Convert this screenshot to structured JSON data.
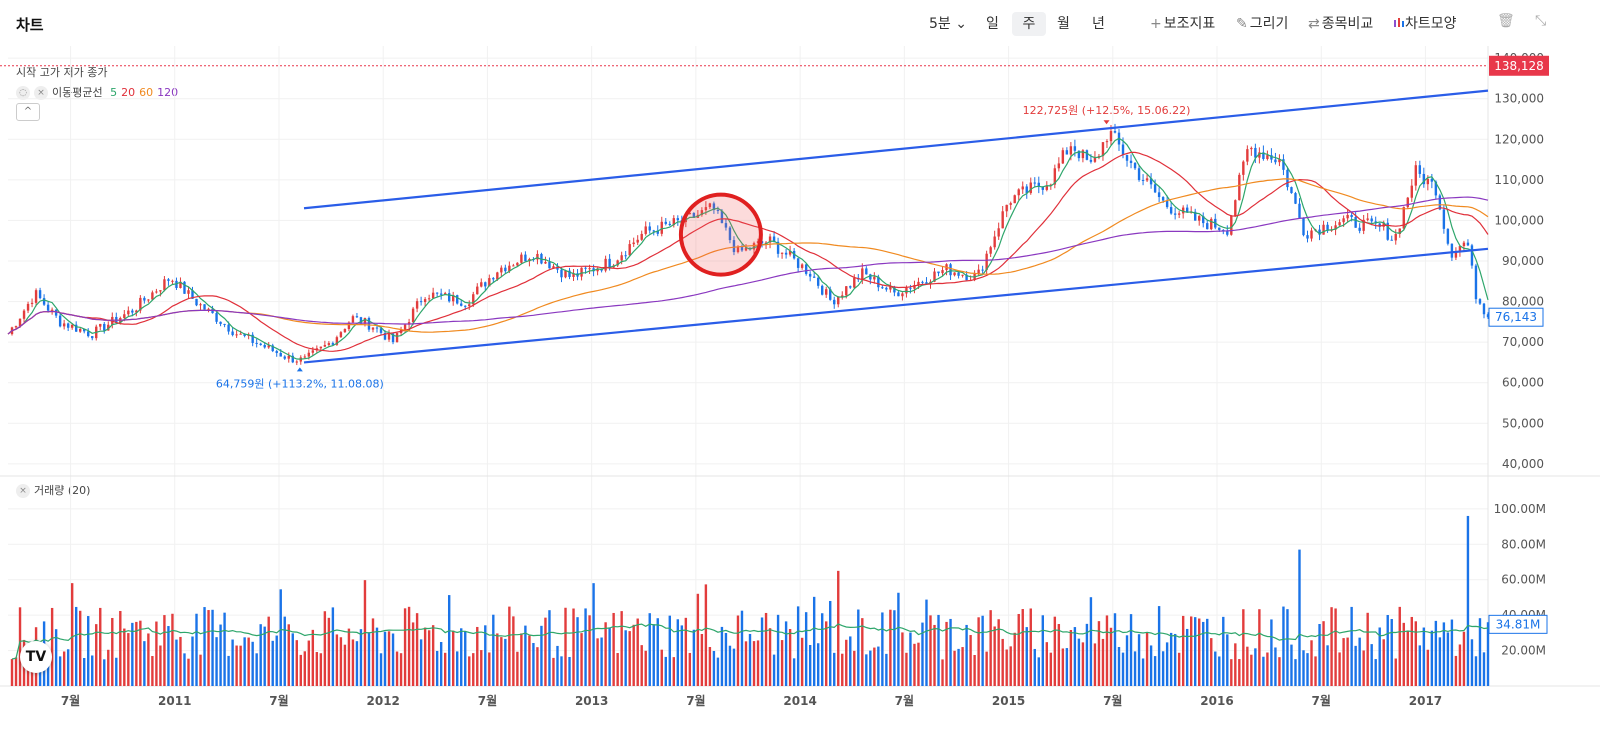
{
  "header": {
    "title": "차트",
    "interval": "5분",
    "periods": [
      "일",
      "주",
      "월",
      "년"
    ],
    "active_period": "주",
    "tools": [
      {
        "icon": "plus",
        "label": "보조지표"
      },
      {
        "icon": "✎",
        "label": "그리기"
      },
      {
        "icon": "⇄",
        "label": "종목비교"
      },
      {
        "icon": "candles",
        "label": "차트모양"
      }
    ]
  },
  "legend": {
    "ohlc_label": "시작 고가 저가 종가",
    "ma_name": "이동평균선",
    "ma_periods": [
      {
        "period": "5",
        "color": "#2ea66b"
      },
      {
        "period": "20",
        "color": "#e0303a"
      },
      {
        "period": "60",
        "color": "#f08a20"
      },
      {
        "period": "120",
        "color": "#8a38c0"
      }
    ],
    "volume_label": "거래량 (20)"
  },
  "price_axis": {
    "ticks": [
      "140,000",
      "130,000",
      "120,000",
      "110,000",
      "100,000",
      "90,000",
      "80,000",
      "70,000",
      "60,000",
      "50,000",
      "40,000"
    ],
    "high_line_label": "138,128",
    "last_price_label": "76,143"
  },
  "volume_axis": {
    "ticks": [
      "100.00M",
      "80.00M",
      "60.00M",
      "40.00M",
      "20.00M"
    ],
    "last_volume_label": "34.81M"
  },
  "time_axis": {
    "labels": [
      "7월",
      "2011",
      "7월",
      "2012",
      "7월",
      "2013",
      "7월",
      "2014",
      "7월",
      "2015",
      "7월",
      "2016",
      "7월",
      "2017"
    ]
  },
  "annotations": {
    "high": "122,725원 (+12.5%, 15.06.22)",
    "low": "64,759원 (+113.2%, 11.08.08)"
  },
  "colors": {
    "up": "#e23c3c",
    "down": "#1a73e8",
    "channel": "#2a5de8",
    "circle": "#e02020",
    "high_label_bg": "#e8374a"
  },
  "chart_data": {
    "type": "candlestick",
    "title": "차트",
    "x_range": [
      "2010-03",
      "2017-03"
    ],
    "ylim": [
      37000,
      143000
    ],
    "volume_ylim": [
      0,
      105000000
    ],
    "price_path": [
      [
        "2010.20",
        72000
      ],
      [
        "2010.33",
        82000
      ],
      [
        "2010.45",
        75000
      ],
      [
        "2010.60",
        72000
      ],
      [
        "2010.80",
        78000
      ],
      [
        "2010.98",
        86000
      ],
      [
        "2011.10",
        80000
      ],
      [
        "2011.30",
        72000
      ],
      [
        "2011.55",
        66000
      ],
      [
        "2011.62",
        65500
      ],
      [
        "2011.75",
        70000
      ],
      [
        "2011.85",
        76000
      ],
      [
        "2011.95",
        74000
      ],
      [
        "2012.05",
        70000
      ],
      [
        "2012.20",
        82000
      ],
      [
        "2012.40",
        80000
      ],
      [
        "2012.55",
        88000
      ],
      [
        "2012.72",
        92000
      ],
      [
        "2012.90",
        86000
      ],
      [
        "2013.10",
        90000
      ],
      [
        "2013.25",
        97000
      ],
      [
        "2013.45",
        100000
      ],
      [
        "2013.58",
        103000
      ],
      [
        "2013.70",
        92000
      ],
      [
        "2013.85",
        95000
      ],
      [
        "2014.05",
        87000
      ],
      [
        "2014.15",
        80000
      ],
      [
        "2014.30",
        87000
      ],
      [
        "2014.45",
        82000
      ],
      [
        "2014.70",
        88000
      ],
      [
        "2014.85",
        86000
      ],
      [
        "2015.00",
        105000
      ],
      [
        "2015.20",
        110000
      ],
      [
        "2015.30",
        119000
      ],
      [
        "2015.40",
        113000
      ],
      [
        "2015.48",
        122000
      ],
      [
        "2015.60",
        113000
      ],
      [
        "2015.75",
        104000
      ],
      [
        "2015.90",
        100000
      ],
      [
        "2016.05",
        98000
      ],
      [
        "2016.15",
        118000
      ],
      [
        "2016.30",
        115000
      ],
      [
        "2016.42",
        97000
      ],
      [
        "2016.60",
        100000
      ],
      [
        "2016.80",
        98000
      ],
      [
        "2016.85",
        95000
      ],
      [
        "2016.95",
        112000
      ],
      [
        "2017.05",
        108000
      ],
      [
        "2017.12",
        92000
      ],
      [
        "2017.20",
        95000
      ],
      [
        "2017.24",
        82000
      ],
      [
        "2017.30",
        76143
      ]
    ],
    "moving_averages": [
      {
        "name": "MA5",
        "period": 5,
        "color": "#2ea66b"
      },
      {
        "name": "MA20",
        "period": 20,
        "color": "#e0303a"
      },
      {
        "name": "MA60",
        "period": 60,
        "color": "#f08a20"
      },
      {
        "name": "MA120",
        "period": 120,
        "color": "#8a38c0"
      }
    ],
    "trend_channel": {
      "upper": [
        [
          "2011.62",
          103000
        ],
        [
          "2017.30",
          132000
        ]
      ],
      "lower": [
        [
          "2011.62",
          65000
        ],
        [
          "2017.30",
          93000
        ]
      ]
    },
    "highlight_circle": {
      "center": [
        "2013.62",
        96500
      ]
    },
    "high_marker": {
      "date": "2015.47",
      "value": 122725
    },
    "low_marker": {
      "date": "2011.60",
      "value": 64759
    },
    "dotted_high_line": 138128,
    "last_price": 76143,
    "last_volume": 34810000,
    "volume_spikes": [
      [
        "2014.18",
        65000000
      ],
      [
        "2016.40",
        77000000
      ],
      [
        "2017.20",
        96000000
      ]
    ]
  }
}
